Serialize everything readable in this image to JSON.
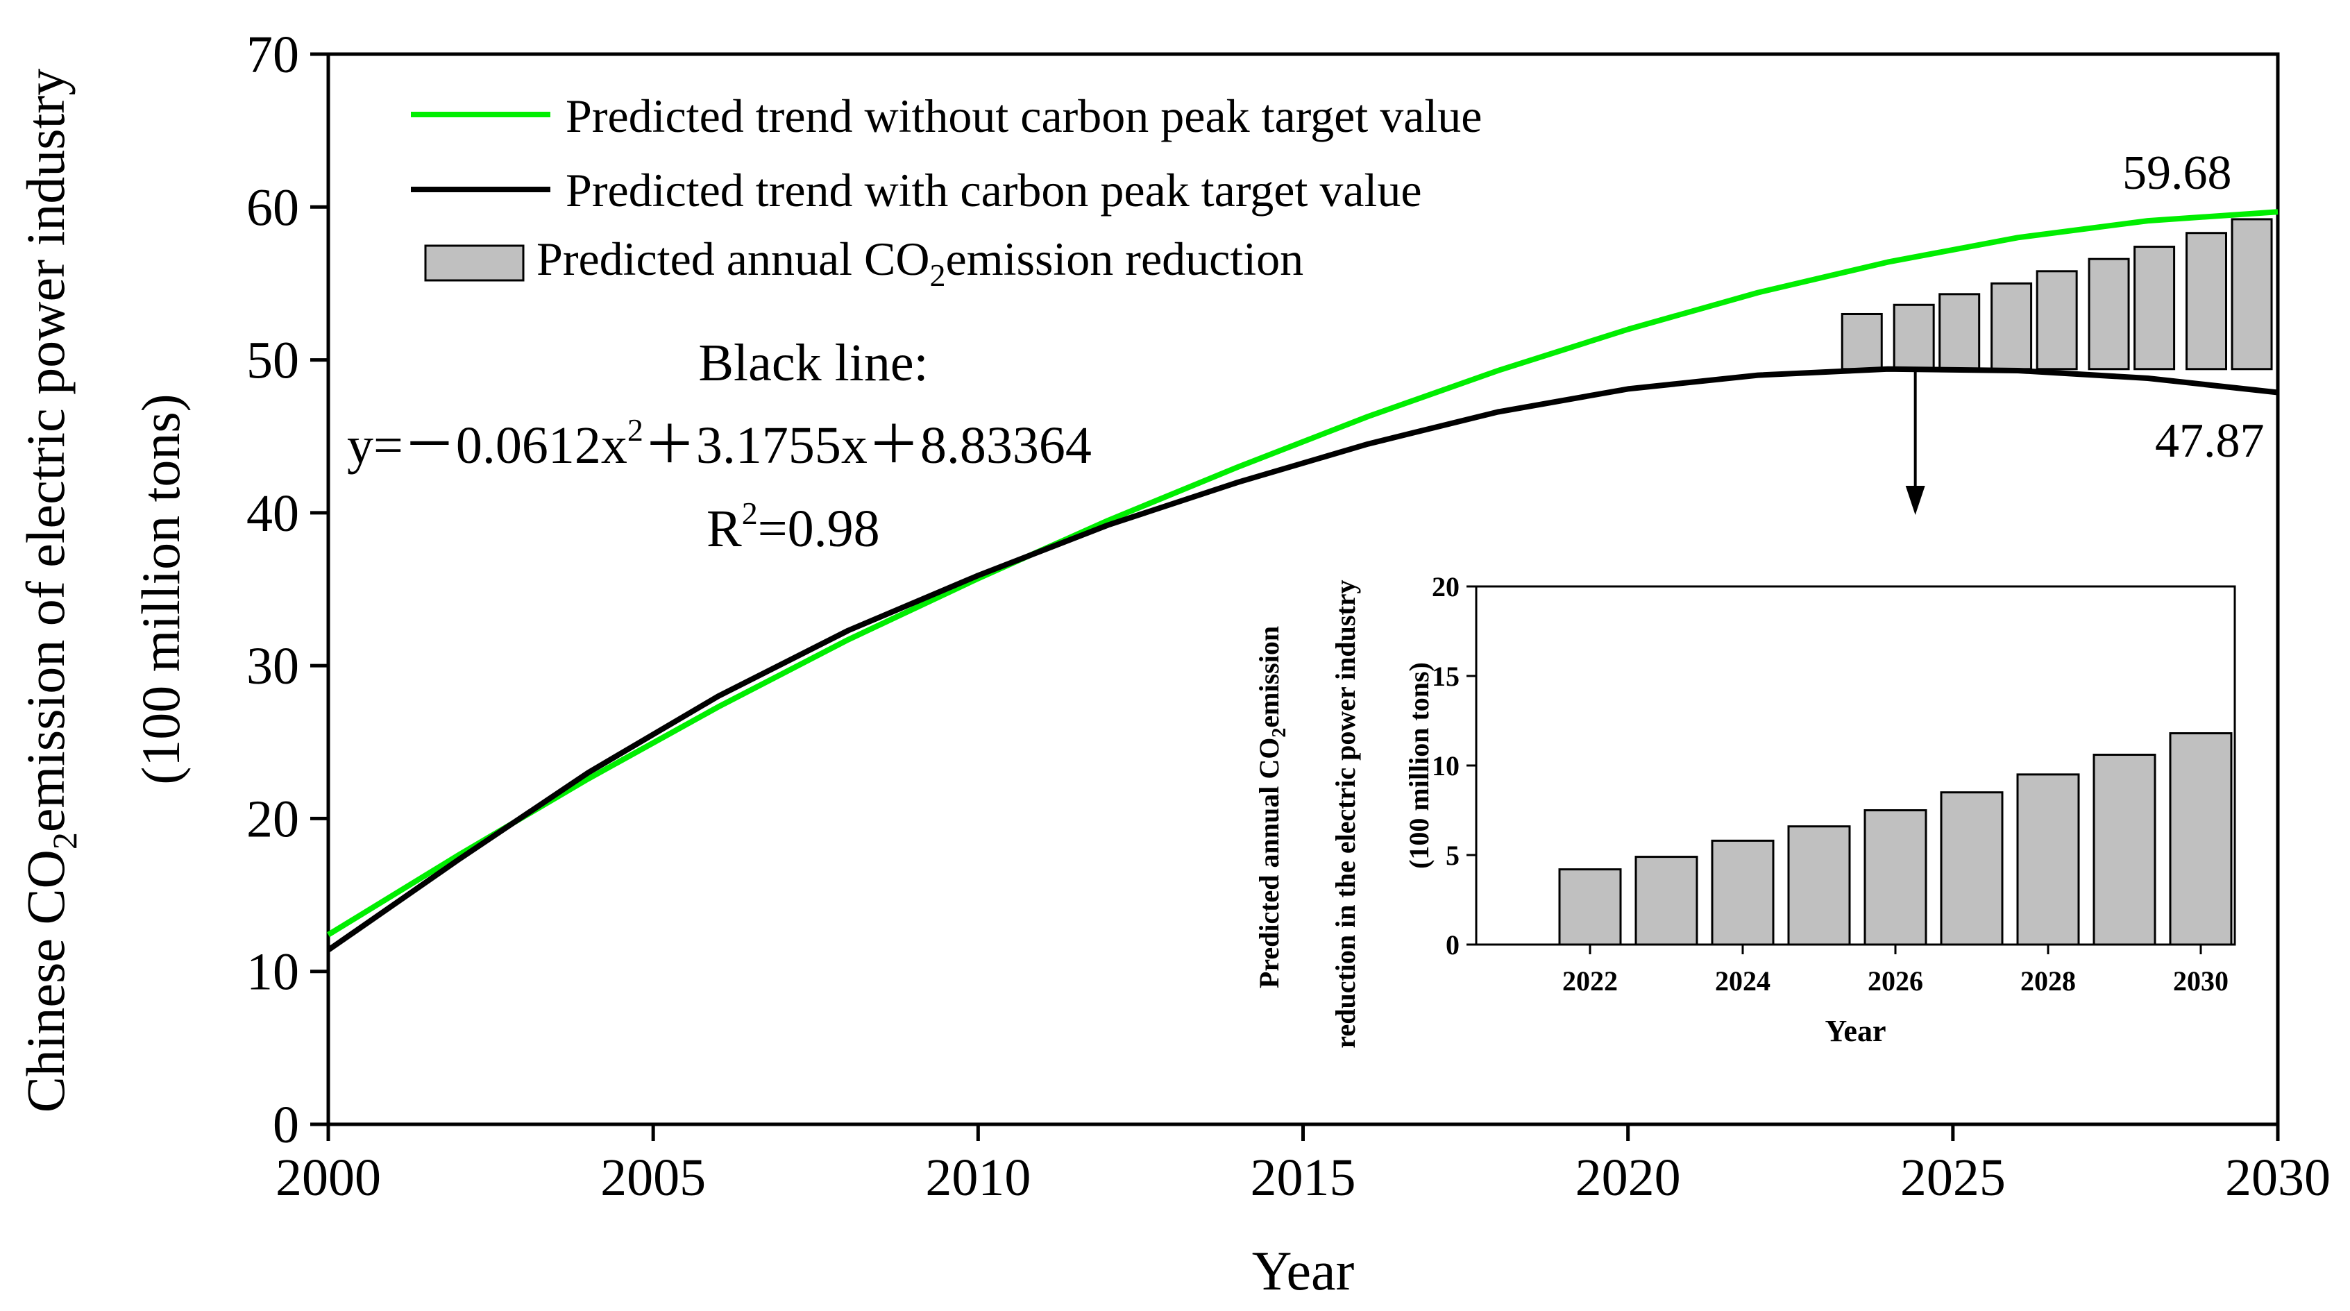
{
  "colors": {
    "green_line": "#00ee00",
    "black_line": "#000000",
    "bar_fill": "#c0c0c0",
    "bar_stroke": "#000000",
    "background": "#ffffff"
  },
  "chart_data": [
    {
      "type": "line",
      "xlabel": "Year",
      "ylabel_line1": "Chinese CO",
      "ylabel_sub": "2",
      "ylabel_line1_rest": "emission of electric power industry",
      "ylabel_line2": "(100 million tons)",
      "xlim": [
        2000,
        2030
      ],
      "ylim": [
        0,
        70
      ],
      "x_ticks": [
        "2000",
        "2005",
        "2010",
        "2015",
        "2020",
        "2025",
        "2030"
      ],
      "y_ticks": [
        "0",
        "10",
        "20",
        "30",
        "40",
        "50",
        "60",
        "70"
      ],
      "series": [
        {
          "name": "Predicted trend without carbon peak target value",
          "color": "#00ee00",
          "x": [
            2000,
            2002,
            2004,
            2006,
            2008,
            2010,
            2012,
            2014,
            2016,
            2018,
            2020,
            2022,
            2024,
            2026,
            2028,
            2030
          ],
          "y": [
            12.4,
            17.6,
            22.6,
            27.3,
            31.7,
            35.7,
            39.5,
            43.0,
            46.3,
            49.3,
            52.0,
            54.4,
            56.4,
            58.0,
            59.1,
            59.68
          ]
        },
        {
          "name": "Predicted trend with carbon peak target value",
          "color": "#000000",
          "equation_x_offset": 0,
          "x": [
            2000,
            2002,
            2004,
            2006,
            2008,
            2010,
            2012,
            2014,
            2016,
            2018,
            2020,
            2022,
            2024,
            2026,
            2028,
            2030
          ],
          "y": [
            11.4,
            17.3,
            23.0,
            28.0,
            32.3,
            35.9,
            39.2,
            42.0,
            44.5,
            46.6,
            48.1,
            49.0,
            49.4,
            49.3,
            48.8,
            47.87
          ]
        }
      ],
      "legend": [
        {
          "label": "Predicted trend without carbon peak target value",
          "kind": "line",
          "color": "#00ee00"
        },
        {
          "label": "Predicted trend with carbon peak target value",
          "kind": "line",
          "color": "#000000"
        },
        {
          "label_pre": "Predicted annual CO",
          "label_sub": "2",
          "label_post": "emission reduction",
          "kind": "bar"
        }
      ],
      "reduction_bars": {
        "x": [
          2023.6,
          2024.4,
          2025.1,
          2025.9,
          2026.6,
          2027.4,
          2028.1,
          2028.9,
          2029.6
        ],
        "bottom": 49.4,
        "top": [
          53.0,
          53.6,
          54.3,
          55.0,
          55.8,
          56.6,
          57.4,
          58.3,
          59.2
        ]
      },
      "annotations": {
        "equation_title": "Black line:",
        "equation_y": "y=",
        "equation_neg": "－0.0612x",
        "equation_exp": "2",
        "equation_rest": "＋3.1755x＋8.83364",
        "r2_pre": "R",
        "r2_exp": "2",
        "r2_post": "=0.98",
        "end_label_green": "59.68",
        "end_label_black": "47.87"
      },
      "legend_position": "top-left"
    },
    {
      "type": "bar",
      "title": "",
      "xlabel": "Year",
      "ylabel_line1_pre": "Predicted annual CO",
      "ylabel_line1_sub": "2",
      "ylabel_line1_post": "emission",
      "ylabel_line2": "reduction in the electric power industry",
      "ylabel_line3": "(100 million tons)",
      "categories": [
        "2022",
        "2023",
        "2024",
        "2025",
        "2026",
        "2027",
        "2028",
        "2029",
        "2030"
      ],
      "values": [
        4.2,
        4.9,
        5.8,
        6.6,
        7.5,
        8.5,
        9.5,
        10.6,
        11.8
      ],
      "x_ticks": [
        "2022",
        "2024",
        "2026",
        "2028",
        "2030"
      ],
      "y_ticks": [
        "0",
        "5",
        "10",
        "15",
        "20"
      ],
      "ylim": [
        0,
        20
      ]
    }
  ]
}
